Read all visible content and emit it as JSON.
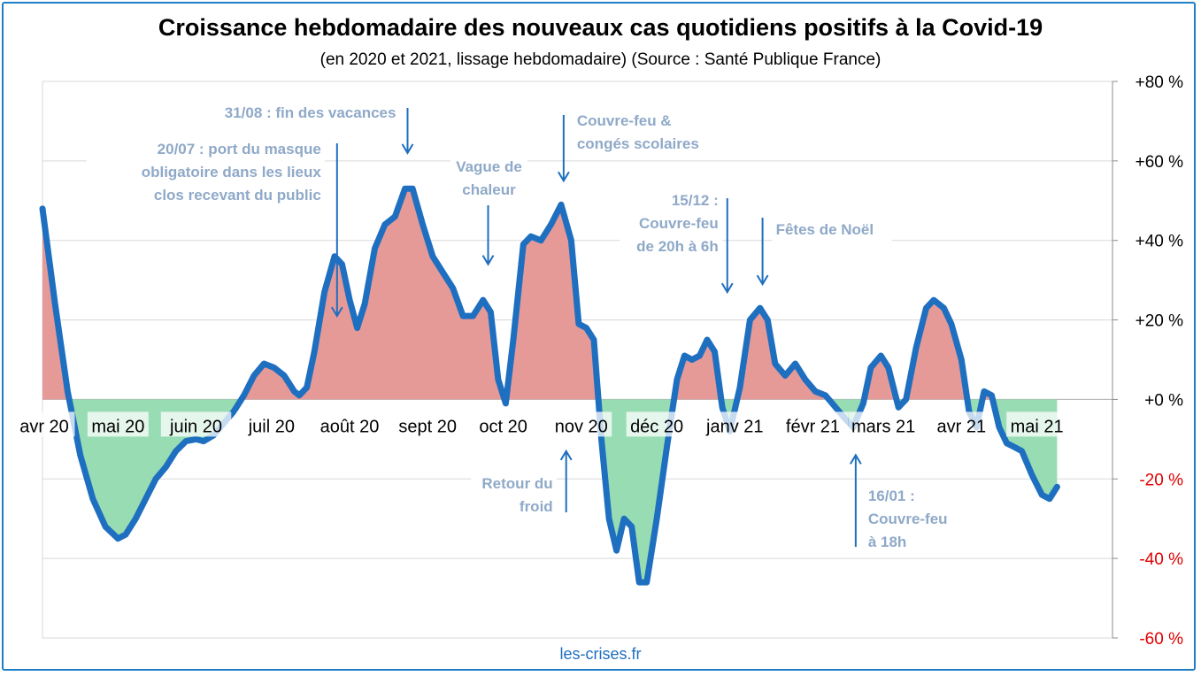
{
  "title": "Croissance hebdomadaire des nouveaux cas quotidiens positifs à la Covid-19",
  "subtitle": "(en 2020 et 2021, lissage hebdomadaire) (Source : Santé Publique France)",
  "footer": "les-crises.fr",
  "colors": {
    "line": "#1f6fc0",
    "positive_fill": "#e59a98",
    "negative_fill": "#98dcb4",
    "negative_tick": "#e00000",
    "annotation": "#8fa9c8",
    "arrow": "#1f6fbf",
    "frame": "#1f7fc6"
  },
  "chart_data": {
    "type": "area",
    "title": "Croissance hebdomadaire des nouveaux cas quotidiens positifs à la Covid-19",
    "subtitle": "(en 2020 et 2021, lissage hebdomadaire) (Source : Santé Publique France)",
    "xlabel": "",
    "ylabel": "",
    "x_range": [
      "2020-04-01",
      "2021-05-31"
    ],
    "ylim": [
      -60,
      80
    ],
    "grid": true,
    "y_ticks": [
      {
        "value": 80,
        "label": "+80 %"
      },
      {
        "value": 60,
        "label": "+60 %"
      },
      {
        "value": 40,
        "label": "+40 %"
      },
      {
        "value": 20,
        "label": "+20 %"
      },
      {
        "value": 0,
        "label": "+0 %"
      },
      {
        "value": -20,
        "label": "-20 %"
      },
      {
        "value": -40,
        "label": "-40 %"
      },
      {
        "value": -60,
        "label": "-60 %"
      }
    ],
    "x_ticks": [
      {
        "date": "2020-04-01",
        "label": "avr 20"
      },
      {
        "date": "2020-05-01",
        "label": "mai 20"
      },
      {
        "date": "2020-06-01",
        "label": "juin 20"
      },
      {
        "date": "2020-07-01",
        "label": "juil 20"
      },
      {
        "date": "2020-08-01",
        "label": "août 20"
      },
      {
        "date": "2020-09-01",
        "label": "sept 20"
      },
      {
        "date": "2020-10-01",
        "label": "oct 20"
      },
      {
        "date": "2020-11-01",
        "label": "nov 20"
      },
      {
        "date": "2020-12-01",
        "label": "déc 20"
      },
      {
        "date": "2021-01-01",
        "label": "janv 21"
      },
      {
        "date": "2021-02-01",
        "label": "févr 21"
      },
      {
        "date": "2021-03-01",
        "label": "mars 21"
      },
      {
        "date": "2021-04-01",
        "label": "avr 21"
      },
      {
        "date": "2021-05-01",
        "label": "mai 21"
      }
    ],
    "series": [
      {
        "points": [
          [
            "2020-04-01",
            48
          ],
          [
            "2020-04-06",
            24
          ],
          [
            "2020-04-11",
            2
          ],
          [
            "2020-04-16",
            -14
          ],
          [
            "2020-04-21",
            -25
          ],
          [
            "2020-04-26",
            -32
          ],
          [
            "2020-05-01",
            -35
          ],
          [
            "2020-05-04",
            -34
          ],
          [
            "2020-05-08",
            -30
          ],
          [
            "2020-05-12",
            -25
          ],
          [
            "2020-05-16",
            -20
          ],
          [
            "2020-05-20",
            -17
          ],
          [
            "2020-05-24",
            -13
          ],
          [
            "2020-05-28",
            -10.5
          ],
          [
            "2020-06-01",
            -10
          ],
          [
            "2020-06-04",
            -10.5
          ],
          [
            "2020-06-08",
            -9
          ],
          [
            "2020-06-12",
            -6
          ],
          [
            "2020-06-16",
            -3
          ],
          [
            "2020-06-20",
            1
          ],
          [
            "2020-06-24",
            6
          ],
          [
            "2020-06-28",
            9
          ],
          [
            "2020-07-02",
            8
          ],
          [
            "2020-07-06",
            6
          ],
          [
            "2020-07-10",
            2
          ],
          [
            "2020-07-12",
            1
          ],
          [
            "2020-07-15",
            3
          ],
          [
            "2020-07-18",
            12
          ],
          [
            "2020-07-22",
            27
          ],
          [
            "2020-07-26",
            36
          ],
          [
            "2020-07-29",
            34
          ],
          [
            "2020-08-01",
            25
          ],
          [
            "2020-08-04",
            18
          ],
          [
            "2020-08-07",
            24
          ],
          [
            "2020-08-11",
            38
          ],
          [
            "2020-08-15",
            44
          ],
          [
            "2020-08-19",
            46
          ],
          [
            "2020-08-23",
            53
          ],
          [
            "2020-08-26",
            53
          ],
          [
            "2020-08-30",
            44
          ],
          [
            "2020-09-03",
            36
          ],
          [
            "2020-09-07",
            32
          ],
          [
            "2020-09-11",
            28
          ],
          [
            "2020-09-15",
            21
          ],
          [
            "2020-09-19",
            21
          ],
          [
            "2020-09-23",
            25
          ],
          [
            "2020-09-26",
            22
          ],
          [
            "2020-09-29",
            5
          ],
          [
            "2020-10-02",
            -1
          ],
          [
            "2020-10-05",
            15
          ],
          [
            "2020-10-09",
            39
          ],
          [
            "2020-10-12",
            41
          ],
          [
            "2020-10-16",
            40
          ],
          [
            "2020-10-20",
            44
          ],
          [
            "2020-10-24",
            49
          ],
          [
            "2020-10-28",
            40
          ],
          [
            "2020-10-31",
            19
          ],
          [
            "2020-11-03",
            18
          ],
          [
            "2020-11-06",
            15
          ],
          [
            "2020-11-09",
            -10
          ],
          [
            "2020-11-12",
            -30
          ],
          [
            "2020-11-15",
            -38
          ],
          [
            "2020-11-18",
            -30
          ],
          [
            "2020-11-21",
            -32
          ],
          [
            "2020-11-24",
            -46
          ],
          [
            "2020-11-27",
            -46
          ],
          [
            "2020-12-01",
            -30
          ],
          [
            "2020-12-05",
            -12
          ],
          [
            "2020-12-09",
            5
          ],
          [
            "2020-12-12",
            11
          ],
          [
            "2020-12-15",
            10
          ],
          [
            "2020-12-18",
            11
          ],
          [
            "2020-12-21",
            15
          ],
          [
            "2020-12-24",
            12
          ],
          [
            "2020-12-27",
            -2
          ],
          [
            "2020-12-30",
            -8
          ],
          [
            "2021-01-03",
            3
          ],
          [
            "2021-01-07",
            20
          ],
          [
            "2021-01-11",
            23
          ],
          [
            "2021-01-14",
            20
          ],
          [
            "2021-01-17",
            9
          ],
          [
            "2021-01-21",
            6
          ],
          [
            "2021-01-25",
            9
          ],
          [
            "2021-01-29",
            5
          ],
          [
            "2021-02-02",
            2
          ],
          [
            "2021-02-06",
            1
          ],
          [
            "2021-02-10",
            -2
          ],
          [
            "2021-02-14",
            -5
          ],
          [
            "2021-02-17",
            -7
          ],
          [
            "2021-02-21",
            -1
          ],
          [
            "2021-02-24",
            8
          ],
          [
            "2021-02-28",
            11
          ],
          [
            "2021-03-03",
            8
          ],
          [
            "2021-03-07",
            -2
          ],
          [
            "2021-03-10",
            0
          ],
          [
            "2021-03-14",
            13
          ],
          [
            "2021-03-18",
            23
          ],
          [
            "2021-03-21",
            25
          ],
          [
            "2021-03-25",
            23
          ],
          [
            "2021-03-28",
            19
          ],
          [
            "2021-04-01",
            10
          ],
          [
            "2021-04-04",
            -3
          ],
          [
            "2021-04-07",
            -7
          ],
          [
            "2021-04-10",
            2
          ],
          [
            "2021-04-13",
            1
          ],
          [
            "2021-04-16",
            -7
          ],
          [
            "2021-04-19",
            -11
          ],
          [
            "2021-04-22",
            -12
          ],
          [
            "2021-04-25",
            -13
          ],
          [
            "2021-04-29",
            -19
          ],
          [
            "2021-05-03",
            -24
          ],
          [
            "2021-05-06",
            -25
          ],
          [
            "2021-05-09",
            -22
          ]
        ]
      }
    ],
    "annotations": [
      {
        "lines": [
          "20/07 : port du masque",
          "obligatoire  dans les lieux",
          "clos recevant du public"
        ],
        "date": "2020-07-27",
        "arrow": "down",
        "target": 21
      },
      {
        "lines": [
          "31/08 : fin des vacances"
        ],
        "date": "2020-08-24",
        "arrow": "down",
        "target": 62
      },
      {
        "lines": [
          "Vague de",
          "chaleur"
        ],
        "date": "2020-09-25",
        "arrow": "down",
        "target": 34
      },
      {
        "lines": [
          "Couvre-feu &",
          "congés scolaires"
        ],
        "date": "2020-10-25",
        "arrow": "down",
        "target": 55
      },
      {
        "lines": [
          "15/12 :",
          "Couvre-feu",
          "de 20h à 6h"
        ],
        "date": "2020-12-29",
        "arrow": "down",
        "target": 27
      },
      {
        "lines": [
          "Fêtes de Noël"
        ],
        "date": "2021-01-12",
        "arrow": "down",
        "target": 29
      },
      {
        "lines": [
          "Retour du",
          "froid"
        ],
        "date": "2020-10-26",
        "arrow": "up",
        "target": -13
      },
      {
        "lines": [
          "16/01 :",
          "Couvre-feu",
          "à 18h"
        ],
        "date": "2021-02-18",
        "arrow": "up",
        "target": -14
      }
    ]
  }
}
